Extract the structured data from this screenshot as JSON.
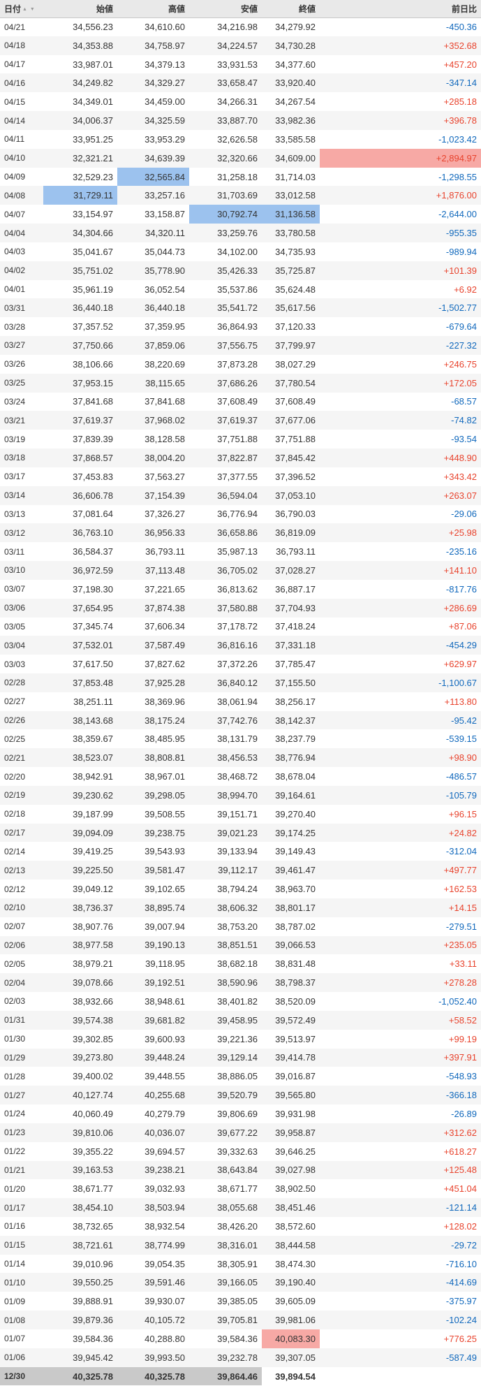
{
  "table": {
    "columns": [
      "日付",
      "始値",
      "高値",
      "安値",
      "終値",
      "前日比"
    ],
    "column_keys": [
      "date",
      "open",
      "high",
      "low",
      "close",
      "change"
    ],
    "sort_asc_icon": "▲",
    "sort_desc_icon": "▼",
    "rows": [
      {
        "date": "04/21",
        "open": "34,556.23",
        "high": "34,610.60",
        "low": "34,216.98",
        "close": "34,279.92",
        "change": "-450.36"
      },
      {
        "date": "04/18",
        "open": "34,353.88",
        "high": "34,758.97",
        "low": "34,224.57",
        "close": "34,730.28",
        "change": "+352.68"
      },
      {
        "date": "04/17",
        "open": "33,987.01",
        "high": "34,379.13",
        "low": "33,931.53",
        "close": "34,377.60",
        "change": "+457.20"
      },
      {
        "date": "04/16",
        "open": "34,249.82",
        "high": "34,329.27",
        "low": "33,658.47",
        "close": "33,920.40",
        "change": "-347.14"
      },
      {
        "date": "04/15",
        "open": "34,349.01",
        "high": "34,459.00",
        "low": "34,266.31",
        "close": "34,267.54",
        "change": "+285.18"
      },
      {
        "date": "04/14",
        "open": "34,006.37",
        "high": "34,325.59",
        "low": "33,887.70",
        "close": "33,982.36",
        "change": "+396.78"
      },
      {
        "date": "04/11",
        "open": "33,951.25",
        "high": "33,953.29",
        "low": "32,626.58",
        "close": "33,585.58",
        "change": "-1,023.42"
      },
      {
        "date": "04/10",
        "open": "32,321.21",
        "high": "34,639.39",
        "low": "32,320.66",
        "close": "34,609.00",
        "change": "+2,894.97",
        "hl": {
          "change": "high"
        }
      },
      {
        "date": "04/09",
        "open": "32,529.23",
        "high": "32,565.84",
        "low": "31,258.18",
        "close": "31,714.03",
        "change": "-1,298.55",
        "hl": {
          "high": "low"
        }
      },
      {
        "date": "04/08",
        "open": "31,729.11",
        "high": "33,257.16",
        "low": "31,703.69",
        "close": "33,012.58",
        "change": "+1,876.00",
        "hl": {
          "open": "low"
        }
      },
      {
        "date": "04/07",
        "open": "33,154.97",
        "high": "33,158.87",
        "low": "30,792.74",
        "close": "31,136.58",
        "change": "-2,644.00",
        "hl": {
          "low": "low",
          "close": "low"
        }
      },
      {
        "date": "04/04",
        "open": "34,304.66",
        "high": "34,320.11",
        "low": "33,259.76",
        "close": "33,780.58",
        "change": "-955.35"
      },
      {
        "date": "04/03",
        "open": "35,041.67",
        "high": "35,044.73",
        "low": "34,102.00",
        "close": "34,735.93",
        "change": "-989.94"
      },
      {
        "date": "04/02",
        "open": "35,751.02",
        "high": "35,778.90",
        "low": "35,426.33",
        "close": "35,725.87",
        "change": "+101.39"
      },
      {
        "date": "04/01",
        "open": "35,961.19",
        "high": "36,052.54",
        "low": "35,537.86",
        "close": "35,624.48",
        "change": "+6.92"
      },
      {
        "date": "03/31",
        "open": "36,440.18",
        "high": "36,440.18",
        "low": "35,541.72",
        "close": "35,617.56",
        "change": "-1,502.77"
      },
      {
        "date": "03/28",
        "open": "37,357.52",
        "high": "37,359.95",
        "low": "36,864.93",
        "close": "37,120.33",
        "change": "-679.64"
      },
      {
        "date": "03/27",
        "open": "37,750.66",
        "high": "37,859.06",
        "low": "37,556.75",
        "close": "37,799.97",
        "change": "-227.32"
      },
      {
        "date": "03/26",
        "open": "38,106.66",
        "high": "38,220.69",
        "low": "37,873.28",
        "close": "38,027.29",
        "change": "+246.75"
      },
      {
        "date": "03/25",
        "open": "37,953.15",
        "high": "38,115.65",
        "low": "37,686.26",
        "close": "37,780.54",
        "change": "+172.05"
      },
      {
        "date": "03/24",
        "open": "37,841.68",
        "high": "37,841.68",
        "low": "37,608.49",
        "close": "37,608.49",
        "change": "-68.57"
      },
      {
        "date": "03/21",
        "open": "37,619.37",
        "high": "37,968.02",
        "low": "37,619.37",
        "close": "37,677.06",
        "change": "-74.82"
      },
      {
        "date": "03/19",
        "open": "37,839.39",
        "high": "38,128.58",
        "low": "37,751.88",
        "close": "37,751.88",
        "change": "-93.54"
      },
      {
        "date": "03/18",
        "open": "37,868.57",
        "high": "38,004.20",
        "low": "37,822.87",
        "close": "37,845.42",
        "change": "+448.90"
      },
      {
        "date": "03/17",
        "open": "37,453.83",
        "high": "37,563.27",
        "low": "37,377.55",
        "close": "37,396.52",
        "change": "+343.42"
      },
      {
        "date": "03/14",
        "open": "36,606.78",
        "high": "37,154.39",
        "low": "36,594.04",
        "close": "37,053.10",
        "change": "+263.07"
      },
      {
        "date": "03/13",
        "open": "37,081.64",
        "high": "37,326.27",
        "low": "36,776.94",
        "close": "36,790.03",
        "change": "-29.06"
      },
      {
        "date": "03/12",
        "open": "36,763.10",
        "high": "36,956.33",
        "low": "36,658.86",
        "close": "36,819.09",
        "change": "+25.98"
      },
      {
        "date": "03/11",
        "open": "36,584.37",
        "high": "36,793.11",
        "low": "35,987.13",
        "close": "36,793.11",
        "change": "-235.16"
      },
      {
        "date": "03/10",
        "open": "36,972.59",
        "high": "37,113.48",
        "low": "36,705.02",
        "close": "37,028.27",
        "change": "+141.10"
      },
      {
        "date": "03/07",
        "open": "37,198.30",
        "high": "37,221.65",
        "low": "36,813.62",
        "close": "36,887.17",
        "change": "-817.76"
      },
      {
        "date": "03/06",
        "open": "37,654.95",
        "high": "37,874.38",
        "low": "37,580.88",
        "close": "37,704.93",
        "change": "+286.69"
      },
      {
        "date": "03/05",
        "open": "37,345.74",
        "high": "37,606.34",
        "low": "37,178.72",
        "close": "37,418.24",
        "change": "+87.06"
      },
      {
        "date": "03/04",
        "open": "37,532.01",
        "high": "37,587.49",
        "low": "36,816.16",
        "close": "37,331.18",
        "change": "-454.29"
      },
      {
        "date": "03/03",
        "open": "37,617.50",
        "high": "37,827.62",
        "low": "37,372.26",
        "close": "37,785.47",
        "change": "+629.97"
      },
      {
        "date": "02/28",
        "open": "37,853.48",
        "high": "37,925.28",
        "low": "36,840.12",
        "close": "37,155.50",
        "change": "-1,100.67"
      },
      {
        "date": "02/27",
        "open": "38,251.11",
        "high": "38,369.96",
        "low": "38,061.94",
        "close": "38,256.17",
        "change": "+113.80"
      },
      {
        "date": "02/26",
        "open": "38,143.68",
        "high": "38,175.24",
        "low": "37,742.76",
        "close": "38,142.37",
        "change": "-95.42"
      },
      {
        "date": "02/25",
        "open": "38,359.67",
        "high": "38,485.95",
        "low": "38,131.79",
        "close": "38,237.79",
        "change": "-539.15"
      },
      {
        "date": "02/21",
        "open": "38,523.07",
        "high": "38,808.81",
        "low": "38,456.53",
        "close": "38,776.94",
        "change": "+98.90"
      },
      {
        "date": "02/20",
        "open": "38,942.91",
        "high": "38,967.01",
        "low": "38,468.72",
        "close": "38,678.04",
        "change": "-486.57"
      },
      {
        "date": "02/19",
        "open": "39,230.62",
        "high": "39,298.05",
        "low": "38,994.70",
        "close": "39,164.61",
        "change": "-105.79"
      },
      {
        "date": "02/18",
        "open": "39,187.99",
        "high": "39,508.55",
        "low": "39,151.71",
        "close": "39,270.40",
        "change": "+96.15"
      },
      {
        "date": "02/17",
        "open": "39,094.09",
        "high": "39,238.75",
        "low": "39,021.23",
        "close": "39,174.25",
        "change": "+24.82"
      },
      {
        "date": "02/14",
        "open": "39,419.25",
        "high": "39,543.93",
        "low": "39,133.94",
        "close": "39,149.43",
        "change": "-312.04"
      },
      {
        "date": "02/13",
        "open": "39,225.50",
        "high": "39,581.47",
        "low": "39,112.17",
        "close": "39,461.47",
        "change": "+497.77"
      },
      {
        "date": "02/12",
        "open": "39,049.12",
        "high": "39,102.65",
        "low": "38,794.24",
        "close": "38,963.70",
        "change": "+162.53"
      },
      {
        "date": "02/10",
        "open": "38,736.37",
        "high": "38,895.74",
        "low": "38,606.32",
        "close": "38,801.17",
        "change": "+14.15"
      },
      {
        "date": "02/07",
        "open": "38,907.76",
        "high": "39,007.94",
        "low": "38,753.20",
        "close": "38,787.02",
        "change": "-279.51"
      },
      {
        "date": "02/06",
        "open": "38,977.58",
        "high": "39,190.13",
        "low": "38,851.51",
        "close": "39,066.53",
        "change": "+235.05"
      },
      {
        "date": "02/05",
        "open": "38,979.21",
        "high": "39,118.95",
        "low": "38,682.18",
        "close": "38,831.48",
        "change": "+33.11"
      },
      {
        "date": "02/04",
        "open": "39,078.66",
        "high": "39,192.51",
        "low": "38,590.96",
        "close": "38,798.37",
        "change": "+278.28"
      },
      {
        "date": "02/03",
        "open": "38,932.66",
        "high": "38,948.61",
        "low": "38,401.82",
        "close": "38,520.09",
        "change": "-1,052.40"
      },
      {
        "date": "01/31",
        "open": "39,574.38",
        "high": "39,681.82",
        "low": "39,458.95",
        "close": "39,572.49",
        "change": "+58.52"
      },
      {
        "date": "01/30",
        "open": "39,302.85",
        "high": "39,600.93",
        "low": "39,221.36",
        "close": "39,513.97",
        "change": "+99.19"
      },
      {
        "date": "01/29",
        "open": "39,273.80",
        "high": "39,448.24",
        "low": "39,129.14",
        "close": "39,414.78",
        "change": "+397.91"
      },
      {
        "date": "01/28",
        "open": "39,400.02",
        "high": "39,448.55",
        "low": "38,886.05",
        "close": "39,016.87",
        "change": "-548.93"
      },
      {
        "date": "01/27",
        "open": "40,127.74",
        "high": "40,255.68",
        "low": "39,520.79",
        "close": "39,565.80",
        "change": "-366.18"
      },
      {
        "date": "01/24",
        "open": "40,060.49",
        "high": "40,279.79",
        "low": "39,806.69",
        "close": "39,931.98",
        "change": "-26.89"
      },
      {
        "date": "01/23",
        "open": "39,810.06",
        "high": "40,036.07",
        "low": "39,677.22",
        "close": "39,958.87",
        "change": "+312.62"
      },
      {
        "date": "01/22",
        "open": "39,355.22",
        "high": "39,694.57",
        "low": "39,332.63",
        "close": "39,646.25",
        "change": "+618.27"
      },
      {
        "date": "01/21",
        "open": "39,163.53",
        "high": "39,238.21",
        "low": "38,643.84",
        "close": "39,027.98",
        "change": "+125.48"
      },
      {
        "date": "01/20",
        "open": "38,671.77",
        "high": "39,032.93",
        "low": "38,671.77",
        "close": "38,902.50",
        "change": "+451.04"
      },
      {
        "date": "01/17",
        "open": "38,454.10",
        "high": "38,503.94",
        "low": "38,055.68",
        "close": "38,451.46",
        "change": "-121.14"
      },
      {
        "date": "01/16",
        "open": "38,732.65",
        "high": "38,932.54",
        "low": "38,426.20",
        "close": "38,572.60",
        "change": "+128.02"
      },
      {
        "date": "01/15",
        "open": "38,721.61",
        "high": "38,774.99",
        "low": "38,316.01",
        "close": "38,444.58",
        "change": "-29.72"
      },
      {
        "date": "01/14",
        "open": "39,010.96",
        "high": "39,054.35",
        "low": "38,305.91",
        "close": "38,474.30",
        "change": "-716.10"
      },
      {
        "date": "01/10",
        "open": "39,550.25",
        "high": "39,591.46",
        "low": "39,166.05",
        "close": "39,190.40",
        "change": "-414.69"
      },
      {
        "date": "01/09",
        "open": "39,888.91",
        "high": "39,930.07",
        "low": "39,385.05",
        "close": "39,605.09",
        "change": "-375.97"
      },
      {
        "date": "01/08",
        "open": "39,879.36",
        "high": "40,105.72",
        "low": "39,705.81",
        "close": "39,981.06",
        "change": "-102.24"
      },
      {
        "date": "01/07",
        "open": "39,584.36",
        "high": "40,288.80",
        "low": "39,584.36",
        "close": "40,083.30",
        "change": "+776.25",
        "hl": {
          "close": "high"
        }
      },
      {
        "date": "01/06",
        "open": "39,945.42",
        "high": "39,993.50",
        "low": "39,232.78",
        "close": "39,307.05",
        "change": "-587.49"
      },
      {
        "date": "12/30",
        "open": "40,325.78",
        "high": "40,325.78",
        "low": "39,864.46",
        "close": "39,894.54",
        "change": "",
        "bold": true,
        "hl": {
          "date": "gray",
          "open": "gray",
          "high": "gray",
          "low": "gray"
        }
      }
    ]
  },
  "colors": {
    "positive": "#e8432d",
    "negative": "#1068bc",
    "highlight_high_bg": "#f7a9a5",
    "highlight_low_bg": "#9cc2ee",
    "final_row_bg": "#c9c9c9",
    "header_bg": "#e9e9e9",
    "alt_row_bg": "#f5f5f5"
  }
}
